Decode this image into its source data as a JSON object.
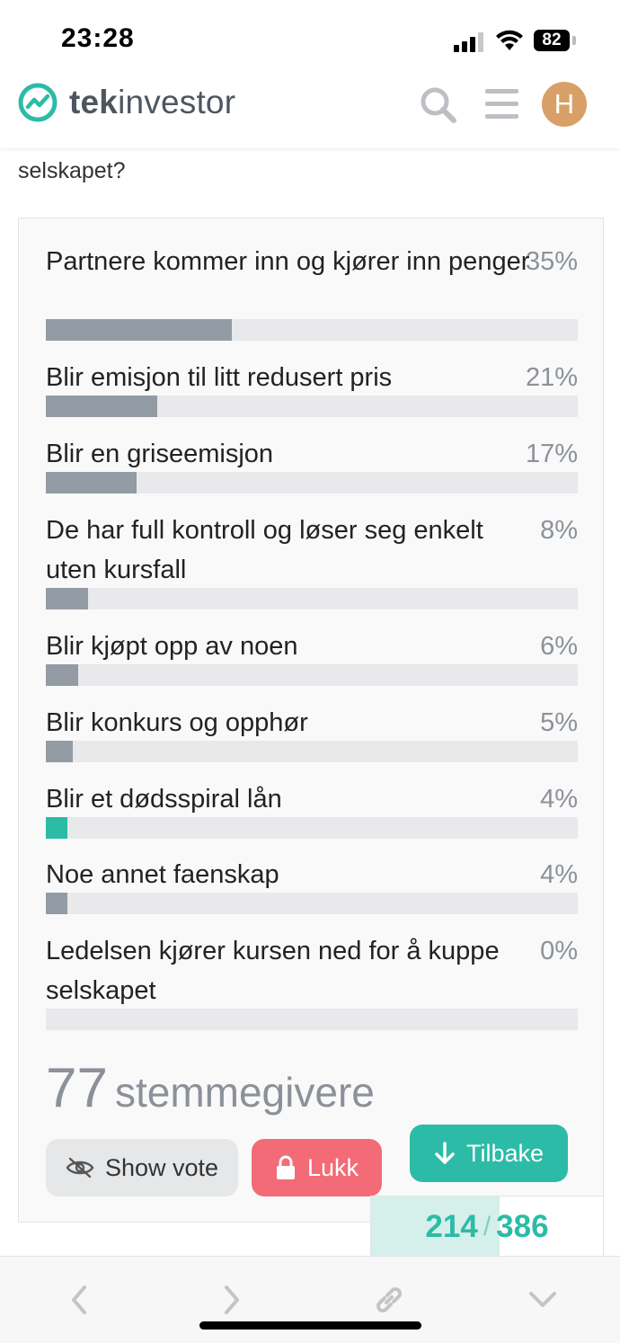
{
  "status_bar": {
    "time": "23:28",
    "battery": "82"
  },
  "header": {
    "logo_bold": "tek",
    "logo_light": "investor",
    "avatar_initial": "H",
    "accent_color": "#2cbba6"
  },
  "question_tail": "selskapet?",
  "poll": {
    "options": [
      {
        "label": "Partnere kommer inn og kjører inn penger",
        "percent_text": "35%",
        "fraction": 0.35,
        "chosen": false
      },
      {
        "label": "Blir emisjon til litt redusert pris",
        "percent_text": "21%",
        "fraction": 0.21,
        "chosen": false
      },
      {
        "label": "Blir en griseemisjon",
        "percent_text": "17%",
        "fraction": 0.17,
        "chosen": false
      },
      {
        "label": "De har full kontroll og løser seg enkelt uten kursfall",
        "percent_text": "8%",
        "fraction": 0.08,
        "chosen": false
      },
      {
        "label": "Blir kjøpt opp av noen",
        "percent_text": "6%",
        "fraction": 0.06,
        "chosen": false
      },
      {
        "label": "Blir konkurs og opphør",
        "percent_text": "5%",
        "fraction": 0.05,
        "chosen": false
      },
      {
        "label": "Blir et dødsspiral lån",
        "percent_text": "4%",
        "fraction": 0.04,
        "chosen": true
      },
      {
        "label": "Noe annet faenskap",
        "percent_text": "4%",
        "fraction": 0.04,
        "chosen": false
      },
      {
        "label": "Ledelsen kjører kursen ned for å kuppe selskapet",
        "percent_text": "0%",
        "fraction": 0.0,
        "chosen": false
      }
    ],
    "voter_count": "77",
    "voter_label": "stemmegivere",
    "show_vote_label": "Show vote",
    "close_label": "Lukk"
  },
  "tilbake_label": "Tilbake",
  "progress": {
    "current": "214",
    "separator": "/",
    "total": "386",
    "fraction": 0.554
  },
  "toolbar_icons": [
    "back-icon",
    "forward-icon",
    "link-icon",
    "chevron-down-icon"
  ]
}
